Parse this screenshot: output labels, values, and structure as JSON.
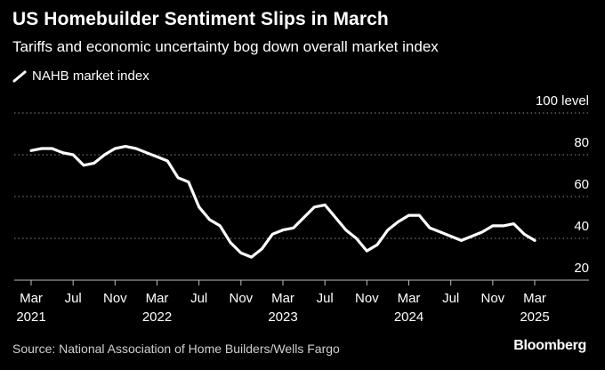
{
  "chart_data": {
    "type": "line",
    "title": "US Homebuilder Sentiment Slips in March",
    "subtitle": "Tariffs and economic uncertainty bog down overall market index",
    "legend": [
      "NAHB market index"
    ],
    "series": [
      {
        "name": "NAHB market index",
        "color": "#ffffff",
        "x": [
          "2021-03",
          "2021-04",
          "2021-05",
          "2021-06",
          "2021-07",
          "2021-08",
          "2021-09",
          "2021-10",
          "2021-11",
          "2021-12",
          "2022-01",
          "2022-02",
          "2022-03",
          "2022-04",
          "2022-05",
          "2022-06",
          "2022-07",
          "2022-08",
          "2022-09",
          "2022-10",
          "2022-11",
          "2022-12",
          "2023-01",
          "2023-02",
          "2023-03",
          "2023-04",
          "2023-05",
          "2023-06",
          "2023-07",
          "2023-08",
          "2023-09",
          "2023-10",
          "2023-11",
          "2023-12",
          "2024-01",
          "2024-02",
          "2024-03",
          "2024-04",
          "2024-05",
          "2024-06",
          "2024-07",
          "2024-08",
          "2024-09",
          "2024-10",
          "2024-11",
          "2024-12",
          "2025-01",
          "2025-02",
          "2025-03"
        ],
        "values": [
          82,
          83,
          83,
          81,
          80,
          75,
          76,
          80,
          83,
          84,
          83,
          81,
          79,
          77,
          69,
          67,
          55,
          49,
          46,
          38,
          33,
          31,
          35,
          42,
          44,
          45,
          50,
          55,
          56,
          50,
          44,
          40,
          34,
          37,
          44,
          48,
          51,
          51,
          45,
          43,
          41,
          39,
          41,
          43,
          46,
          46,
          47,
          42,
          39
        ]
      }
    ],
    "x_ticks": [
      {
        "month": "Mar",
        "year": "2021",
        "x": "2021-03"
      },
      {
        "month": "Jul",
        "year": "",
        "x": "2021-07"
      },
      {
        "month": "Nov",
        "year": "",
        "x": "2021-11"
      },
      {
        "month": "Mar",
        "year": "2022",
        "x": "2022-03"
      },
      {
        "month": "Jul",
        "year": "",
        "x": "2022-07"
      },
      {
        "month": "Nov",
        "year": "",
        "x": "2022-11"
      },
      {
        "month": "Mar",
        "year": "2023",
        "x": "2023-03"
      },
      {
        "month": "Jul",
        "year": "",
        "x": "2023-07"
      },
      {
        "month": "Nov",
        "year": "",
        "x": "2023-11"
      },
      {
        "month": "Mar",
        "year": "2024",
        "x": "2024-03"
      },
      {
        "month": "Jul",
        "year": "",
        "x": "2024-07"
      },
      {
        "month": "Nov",
        "year": "",
        "x": "2024-11"
      },
      {
        "month": "Mar",
        "year": "2025",
        "x": "2025-03"
      }
    ],
    "y_ticks": [
      20,
      40,
      60,
      80,
      100
    ],
    "ylabel": "100 level",
    "ylim": [
      20,
      100
    ],
    "grid": "horizontal dotted",
    "source": "Source: National Association of Home Builders/Wells Fargo",
    "brand": "Bloomberg"
  }
}
